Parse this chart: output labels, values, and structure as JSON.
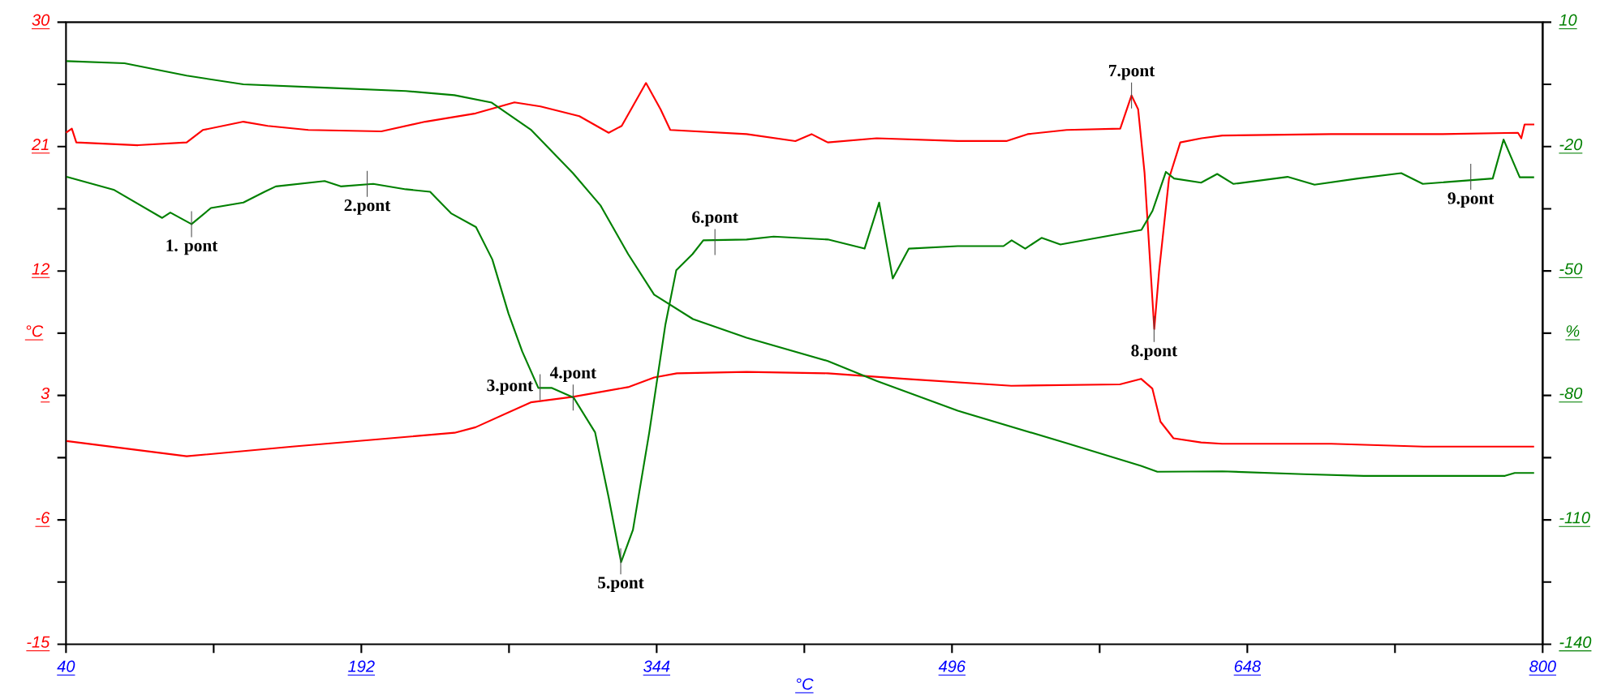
{
  "chart_data": {
    "type": "line",
    "xlabel": "°C",
    "ylabel": "°C",
    "y2label": "%",
    "xlim": [
      40,
      800
    ],
    "xticks": [
      40,
      {
        "value": 116,
        "label": null
      },
      192,
      {
        "value": 268,
        "label": null
      },
      344,
      {
        "value": 420,
        "label": null
      },
      496,
      {
        "value": 572,
        "label": null
      },
      648,
      {
        "value": 724,
        "label": null
      },
      800
    ],
    "ylim": [
      -15,
      30
    ],
    "yticks": [
      -15,
      {
        "value": -10.5,
        "label": null
      },
      -6,
      {
        "value": -1.5,
        "label": null
      },
      3,
      {
        "value": 7.5,
        "label": null
      },
      12,
      {
        "value": 16.5,
        "label": null
      },
      21,
      {
        "value": 25.5,
        "label": null
      },
      30
    ],
    "y2lim": [
      -140,
      10
    ],
    "y2ticks": [
      -140,
      {
        "value": -125,
        "label": null
      },
      -110,
      {
        "value": -95,
        "label": null
      },
      -80,
      {
        "value": -65,
        "label": null
      },
      -50,
      {
        "value": -35,
        "label": null
      },
      -20,
      {
        "value": -5,
        "label": null
      },
      10
    ],
    "series": [
      {
        "color": "#ff0000",
        "x": [
          40,
          43,
          45.3,
          77,
          102.1,
          110.4,
          131.3,
          143.8,
          164.7,
          202.3,
          224.9,
          250.8,
          270.8,
          284.2,
          304.2,
          319.3,
          326,
          338.5,
          346,
          351,
          390.3,
          415.4,
          423.7,
          432.1,
          457.2,
          499,
          524,
          534.9,
          555,
          582.6,
          588.4,
          591.8,
          595.1,
          600.1,
          602.6,
          607.7,
          613.5,
          624.4,
          635.2,
          691.2,
          747.2,
          787.3,
          789,
          790.7,
          795.7
        ],
        "values": [
          22,
          22.3,
          21.3,
          21.1,
          21.3,
          22.2,
          22.8,
          22.5,
          22.2,
          22.1,
          22.8,
          23.4,
          24.2,
          23.9,
          23.2,
          22,
          22.5,
          25.6,
          23.7,
          22.2,
          21.9,
          21.4,
          21.9,
          21.3,
          21.6,
          21.4,
          21.4,
          21.9,
          22.2,
          22.3,
          24.7,
          23.7,
          19.1,
          7.8,
          12,
          18.7,
          21.3,
          21.6,
          21.8,
          21.9,
          21.9,
          22,
          21.6,
          22.6,
          22.6
        ]
      },
      {
        "color": "#ff0000",
        "x": [
          40.3,
          102.1,
          156.4,
          240,
          250.8,
          279.2,
          300.9,
          329.3,
          342.7,
          354.4,
          390.3,
          432.1,
          471.3,
          526.5,
          582.4,
          593.3,
          599.1,
          603.3,
          610,
          624.2,
          635,
          691.2,
          738.8,
          795.6
        ],
        "values": [
          -0.3,
          -1.4,
          -0.7,
          0.3,
          0.7,
          2.5,
          2.9,
          3.6,
          4.3,
          4.6,
          4.7,
          4.6,
          4.2,
          3.7,
          3.8,
          4.2,
          3.5,
          1.1,
          -0.1,
          -0.4,
          -0.5,
          -0.5,
          -0.7,
          -0.7
        ]
      },
      {
        "color": "#008000",
        "axis": "y2",
        "x": [
          40.3,
          70.1,
          102.1,
          131.3,
          173.1,
          214.9,
          239.9,
          259.1,
          279.2,
          300.9,
          315.1,
          329.3,
          342.7,
          362.7,
          390.3,
          432.1,
          457.2,
          499,
          555,
          593.3,
          601.7,
          635.2,
          677,
          707.9,
          780.6,
          785.6,
          795.6
        ],
        "values": [
          0.6,
          0.1,
          -2.9,
          -5,
          -5.8,
          -6.6,
          -7.6,
          -9.4,
          -15.9,
          -26.4,
          -34.2,
          -45.9,
          -55.7,
          -61.6,
          -66.1,
          -71.7,
          -76.5,
          -83.7,
          -91.5,
          -97,
          -98.4,
          -98.3,
          -99,
          -99.4,
          -99.4,
          -98.7,
          -98.7
        ]
      },
      {
        "color": "#008000",
        "axis": "y2",
        "x": [
          40.3,
          64.5,
          89.5,
          93.7,
          104.6,
          114.6,
          131.3,
          142.2,
          148,
          173.1,
          181.4,
          198.1,
          214.9,
          227.4,
          238.2,
          251,
          259.4,
          267.7,
          274.8,
          283.1,
          290.1,
          301.2,
          312.3,
          319.3,
          325.7,
          331.8,
          340.2,
          348.5,
          354.1,
          362.5,
          368,
          390.3,
          404.2,
          432.1,
          451,
          458.5,
          465.5,
          473.8,
          498.9,
          522.5,
          526.7,
          533.7,
          542.1,
          551.8,
          593.5,
          599.2,
          606.1,
          610.3,
          624.2,
          632.5,
          640.9,
          668.7,
          682.6,
          704.9,
          727.2,
          738.3,
          774.3,
          779.9,
          788.2,
          795.6
        ],
        "values": [
          -27.3,
          -30.4,
          -37.2,
          -35.9,
          -38.7,
          -34.8,
          -33.5,
          -30.9,
          -29.6,
          -28.3,
          -29.6,
          -29,
          -30.3,
          -30.9,
          -36.1,
          -39.4,
          -47.2,
          -60.2,
          -69.4,
          -78.2,
          -78.2,
          -80.5,
          -88.9,
          -104.6,
          -120.2,
          -112.4,
          -88.9,
          -62.9,
          -49.8,
          -45.9,
          -42.6,
          -42.4,
          -41.7,
          -42.4,
          -44.6,
          -33.5,
          -51.8,
          -44.6,
          -44,
          -44,
          -42.6,
          -44.6,
          -42,
          -43.6,
          -40.1,
          -35.5,
          -26.1,
          -27.7,
          -28.7,
          -26.6,
          -29,
          -27.3,
          -29.2,
          -27.7,
          -26.4,
          -29,
          -27.7,
          -18.3,
          -27.4,
          -27.4
        ]
      }
    ],
    "annotations": [
      "1. pont",
      "2.pont",
      "3.pont",
      "4.pont",
      "5.pont",
      "6.pont",
      "7.pont",
      "8.pont",
      "9.pont"
    ]
  }
}
